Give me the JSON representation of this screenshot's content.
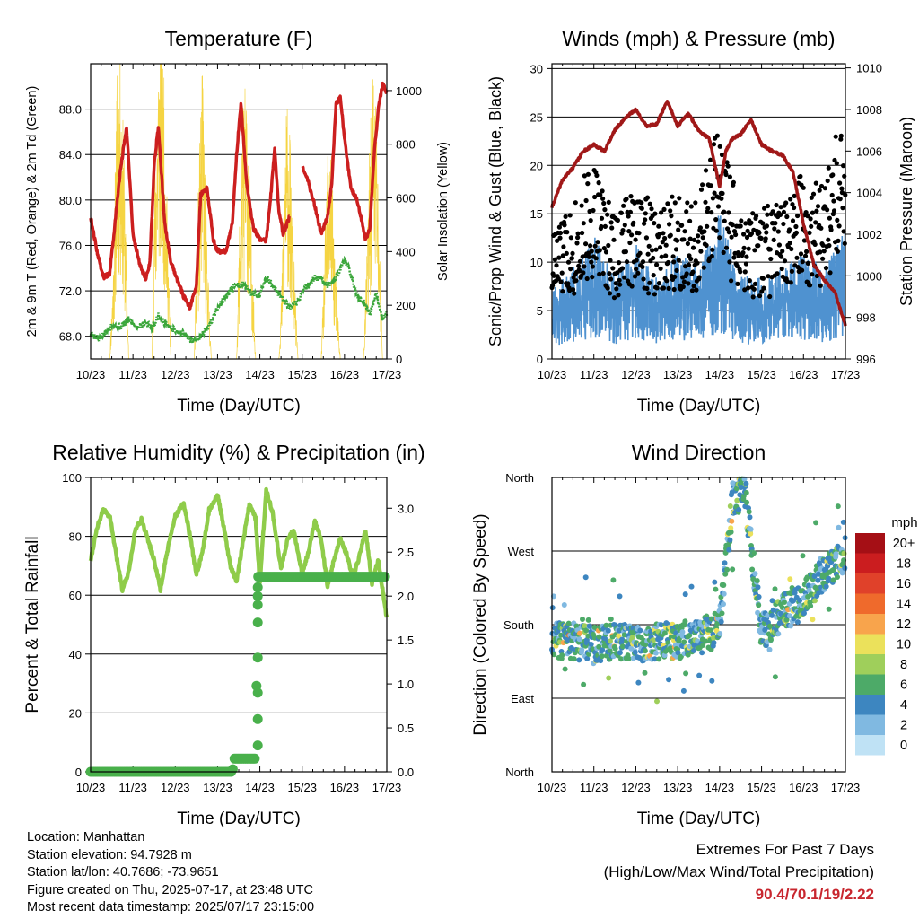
{
  "panels": {
    "temperature": {
      "title": "Temperature (F)",
      "ylabel_left": "2m & 9m T (Red, Orange) & 2m Td (Green)",
      "ylabel_right": "Solar Insolation (Yellow)",
      "xlabel": "Time (Day/UTC)"
    },
    "winds": {
      "title": "Winds (mph) & Pressure (mb)",
      "ylabel_left": "Sonic/Prop Wind & Gust (Blue, Black)",
      "ylabel_right": "Station Pressure (Maroon)",
      "xlabel": "Time (Day/UTC)"
    },
    "humidity": {
      "title": "Relative Humidity (%) & Precipitation (in)",
      "ylabel_left": "Percent & Total Rainfall",
      "xlabel": "Time (Day/UTC)"
    },
    "direction": {
      "title": "Wind Direction",
      "ylabel_left": "Direction (Colored By Speed)",
      "xlabel": "Time (Day/UTC)",
      "legend_title": "mph"
    }
  },
  "chart_data": [
    {
      "type": "line",
      "title": "Temperature (F)",
      "xlabel": "Time (Day/UTC)",
      "x_ticks": [
        "10/23",
        "11/23",
        "12/23",
        "13/23",
        "14/23",
        "15/23",
        "16/23",
        "17/23"
      ],
      "xlim": [
        0,
        7
      ],
      "ylabel": "2m & 9m T (Red, Orange) & 2m Td (Green)",
      "ylim": [
        66,
        92
      ],
      "y_ticks": [
        68.0,
        72.0,
        76.0,
        80.0,
        84.0,
        88.0
      ],
      "y2label": "Solar Insolation (Yellow)",
      "y2lim": [
        0,
        1100
      ],
      "y2_ticks": [
        0,
        200,
        400,
        600,
        800,
        1000
      ],
      "grid": true,
      "colors": {
        "temperature": "#cc1f1f",
        "dewpoint": "#3aa63a",
        "solar": "#f5d442"
      },
      "series": [
        {
          "name": "2m T",
          "axis": "left",
          "x": [
            0.0,
            0.15,
            0.3,
            0.45,
            0.55,
            0.7,
            0.85,
            1.0,
            1.15,
            1.3,
            1.4,
            1.5,
            1.6,
            1.75,
            1.9,
            2.0,
            2.2,
            2.35,
            2.5,
            2.6,
            2.75,
            2.9,
            3.0,
            3.2,
            3.35,
            3.45,
            3.55,
            3.7,
            3.85,
            4.0,
            4.15,
            4.25,
            4.35,
            4.45,
            4.55,
            4.7,
            4.85,
            5.0,
            5.15,
            5.3,
            5.45,
            5.6,
            5.7,
            5.8,
            5.9,
            6.0,
            6.15,
            6.3,
            6.5,
            6.6,
            6.7,
            6.8,
            6.9,
            7.0
          ],
          "y": [
            78.5,
            75.5,
            73.2,
            73.5,
            77.0,
            82.5,
            86.5,
            77.0,
            74.5,
            73.0,
            74.5,
            83.0,
            86.5,
            78.0,
            74.5,
            73.5,
            71.5,
            70.5,
            72.5,
            80.5,
            81.0,
            76.5,
            75.5,
            75.5,
            78.0,
            84.0,
            88.5,
            81.0,
            77.5,
            76.5,
            76.5,
            80.0,
            84.5,
            79.0,
            77.0,
            78.5,
            null,
            83.0,
            81.5,
            79.5,
            77.0,
            78.5,
            81.5,
            88.5,
            89.0,
            85.5,
            81.0,
            80.0,
            76.5,
            77.5,
            84.0,
            88.0,
            90.2,
            89.5
          ]
        },
        {
          "name": "2m Td",
          "axis": "left",
          "x": [
            0.0,
            0.2,
            0.35,
            0.5,
            0.7,
            0.9,
            1.1,
            1.3,
            1.45,
            1.6,
            1.8,
            2.0,
            2.2,
            2.4,
            2.6,
            2.8,
            3.0,
            3.2,
            3.4,
            3.6,
            3.8,
            4.0,
            4.15,
            4.3,
            4.5,
            4.7,
            4.9,
            5.0,
            5.15,
            5.3,
            5.45,
            5.6,
            5.75,
            5.9,
            6.0,
            6.15,
            6.3,
            6.45,
            6.6,
            6.75,
            6.9,
            7.0
          ],
          "y": [
            68.2,
            67.8,
            68.3,
            69.0,
            68.8,
            69.5,
            68.8,
            69.2,
            68.7,
            69.8,
            69.0,
            68.5,
            68.2,
            67.6,
            68.0,
            68.9,
            70.5,
            71.5,
            72.4,
            72.6,
            71.8,
            71.6,
            73.2,
            72.5,
            71.5,
            70.5,
            71.0,
            72.0,
            72.5,
            73.2,
            73.0,
            72.5,
            73.0,
            73.8,
            74.8,
            73.5,
            71.5,
            71.0,
            70.0,
            71.8,
            69.5,
            70.0
          ]
        },
        {
          "name": "Solar Insolation",
          "axis": "right",
          "x": [
            0.0,
            0.45,
            0.55,
            0.62,
            0.7,
            0.78,
            0.9,
            1.45,
            1.52,
            1.6,
            1.68,
            1.75,
            1.9,
            2.45,
            2.5,
            2.58,
            2.65,
            2.72,
            2.85,
            3.45,
            3.52,
            3.6,
            3.68,
            3.75,
            3.9,
            4.45,
            4.52,
            4.6,
            4.68,
            4.75,
            4.9,
            5.45,
            5.52,
            5.6,
            5.68,
            5.75,
            5.9,
            6.45,
            6.52,
            6.6,
            6.68,
            6.75,
            6.9
          ],
          "y": [
            0,
            0,
            350,
            920,
            960,
            700,
            0,
            0,
            600,
            1000,
            1100,
            800,
            0,
            0,
            300,
            700,
            950,
            500,
            0,
            0,
            450,
            800,
            900,
            600,
            0,
            0,
            250,
            750,
            850,
            500,
            0,
            0,
            300,
            650,
            700,
            400,
            0,
            0,
            300,
            700,
            950,
            800,
            0
          ]
        }
      ]
    },
    {
      "type": "scatter",
      "title": "Winds (mph) & Pressure (mb)",
      "xlabel": "Time (Day/UTC)",
      "x_ticks": [
        "10/23",
        "11/23",
        "12/23",
        "13/23",
        "14/23",
        "15/23",
        "16/23",
        "17/23"
      ],
      "xlim": [
        0,
        7
      ],
      "ylabel": "Sonic/Prop Wind & Gust (Blue, Black)",
      "ylim": [
        0,
        30.5
      ],
      "y_ticks": [
        0,
        5,
        10,
        15,
        20,
        25,
        30
      ],
      "y2label": "Station Pressure (Maroon)",
      "y2lim": [
        996,
        1010.2
      ],
      "y2_ticks": [
        996,
        998,
        1000,
        1002,
        1004,
        1006,
        1008,
        1010
      ],
      "grid": true,
      "colors": {
        "wind": "#4f92d0",
        "gust": "#000000",
        "pressure": "#a01818"
      },
      "series": [
        {
          "name": "Sonic/Prop Wind",
          "axis": "left",
          "x": [
            0.0,
            0.5,
            1.0,
            1.5,
            2.0,
            2.5,
            3.0,
            3.5,
            4.0,
            4.5,
            5.0,
            5.5,
            6.0,
            6.5,
            7.0
          ],
          "y": [
            4.5,
            5.5,
            7.5,
            5.0,
            7.0,
            5.0,
            6.5,
            5.5,
            9.0,
            5.0,
            5.0,
            5.5,
            6.5,
            5.5,
            8.0
          ]
        },
        {
          "name": "Gust",
          "axis": "left",
          "x": [
            0.0,
            0.5,
            1.0,
            1.5,
            2.0,
            2.5,
            3.0,
            3.5,
            4.0,
            4.5,
            5.0,
            5.5,
            6.0,
            6.5,
            7.0
          ],
          "y": [
            9.0,
            11.0,
            14.0,
            10.0,
            13.0,
            10.0,
            12.0,
            11.0,
            17.0,
            10.0,
            10.5,
            11.0,
            13.0,
            12.0,
            18.5
          ]
        },
        {
          "name": "Station Pressure",
          "axis": "right",
          "x": [
            0.0,
            0.25,
            0.5,
            0.75,
            1.0,
            1.25,
            1.5,
            1.75,
            2.0,
            2.25,
            2.5,
            2.75,
            3.0,
            3.25,
            3.5,
            3.75,
            4.0,
            4.15,
            4.3,
            4.5,
            4.75,
            5.0,
            5.25,
            5.5,
            5.75,
            6.0,
            6.25,
            6.5,
            6.75,
            7.0
          ],
          "y": [
            1003.3,
            1004.6,
            1005.2,
            1006.0,
            1006.3,
            1006.0,
            1007.0,
            1007.6,
            1008.0,
            1007.2,
            1007.3,
            1008.4,
            1007.2,
            1007.8,
            1007.0,
            1006.6,
            1004.3,
            1006.0,
            1006.6,
            1006.8,
            1007.5,
            1006.3,
            1006.0,
            1005.8,
            1005.0,
            1002.5,
            1000.5,
            999.8,
            999.2,
            997.6
          ]
        }
      ]
    },
    {
      "type": "line",
      "title": "Relative Humidity (%) & Precipitation (in)",
      "xlabel": "Time (Day/UTC)",
      "x_ticks": [
        "10/23",
        "11/23",
        "12/23",
        "13/23",
        "14/23",
        "15/23",
        "16/23",
        "17/23"
      ],
      "xlim": [
        0,
        7
      ],
      "ylabel": "Percent & Total Rainfall",
      "ylim": [
        0,
        100
      ],
      "y_ticks": [
        0,
        20,
        40,
        60,
        80,
        100
      ],
      "y2lim": [
        0,
        3.35
      ],
      "y2_ticks": [
        0.0,
        0.5,
        1.0,
        1.5,
        2.0,
        2.5,
        3.0
      ],
      "grid": true,
      "colors": {
        "rh": "#8fcc4a",
        "precip": "#49b04b"
      },
      "series": [
        {
          "name": "Relative Humidity",
          "axis": "left",
          "x": [
            0.0,
            0.15,
            0.3,
            0.45,
            0.6,
            0.75,
            0.9,
            1.05,
            1.2,
            1.35,
            1.5,
            1.65,
            1.8,
            2.0,
            2.2,
            2.35,
            2.5,
            2.65,
            2.8,
            3.0,
            3.15,
            3.3,
            3.45,
            3.6,
            3.75,
            3.9,
            4.0,
            4.15,
            4.3,
            4.5,
            4.65,
            4.8,
            5.0,
            5.15,
            5.3,
            5.45,
            5.6,
            5.75,
            5.9,
            6.05,
            6.2,
            6.35,
            6.5,
            6.65,
            6.8,
            7.0
          ],
          "y": [
            72,
            83,
            89,
            87,
            74,
            62,
            68,
            82,
            86,
            79,
            72,
            62,
            74,
            87,
            91,
            80,
            67,
            75,
            89,
            94,
            83,
            70,
            65,
            78,
            91,
            86,
            64,
            96,
            88,
            69,
            79,
            82,
            67,
            75,
            85,
            79,
            63,
            72,
            79,
            74,
            66,
            73,
            82,
            64,
            72,
            52
          ]
        },
        {
          "name": "Total Precipitation",
          "axis": "right",
          "x": [
            0.0,
            3.35,
            3.4,
            3.9,
            3.95,
            4.0,
            7.0
          ],
          "y": [
            0.0,
            0.0,
            0.15,
            0.15,
            2.22,
            2.22,
            2.22
          ]
        }
      ]
    },
    {
      "type": "scatter",
      "title": "Wind Direction",
      "xlabel": "Time (Day/UTC)",
      "x_ticks": [
        "10/23",
        "11/23",
        "12/23",
        "13/23",
        "14/23",
        "15/23",
        "16/23",
        "17/23"
      ],
      "xlim": [
        0,
        7
      ],
      "ylabel": "Direction (Colored By Speed)",
      "ylim": [
        0,
        360
      ],
      "y_ticks": [
        "North",
        "East",
        "South",
        "West",
        "North"
      ],
      "grid": true,
      "legend": {
        "title": "mph",
        "position": "right",
        "labels": [
          "20+",
          "18",
          "16",
          "14",
          "12",
          "10",
          "8",
          "6",
          "4",
          "2",
          "0"
        ],
        "colors": [
          "#a50f15",
          "#cb1d1f",
          "#e0412a",
          "#ef6a2c",
          "#f8a44c",
          "#ebe15b",
          "#9fcf5b",
          "#4daa68",
          "#3d86c0",
          "#80b9e1",
          "#bfe2f5"
        ]
      },
      "series": [
        {
          "name": "Wind Direction",
          "x": [
            0.0,
            0.5,
            1.0,
            1.5,
            2.0,
            2.5,
            3.0,
            3.5,
            4.0,
            4.3,
            4.6,
            5.0,
            5.5,
            6.0,
            6.5,
            7.0
          ],
          "y": [
            160,
            160,
            155,
            160,
            155,
            160,
            160,
            165,
            175,
            330,
            345,
            170,
            195,
            215,
            245,
            265
          ]
        }
      ]
    }
  ],
  "footer": {
    "location": "Location: Manhattan",
    "elevation": "Station elevation: 94.7928 m",
    "latlon": "Station lat/lon: 40.7686; -73.9651",
    "created": "Figure created on Thu, 2025-07-17, at 23:48 UTC",
    "recent": "Most recent data timestamp: 2025/07/17 23:15:00"
  },
  "extremes": {
    "title_line1": "Extremes For Past 7 Days",
    "title_line2": "(High/Low/Max Wind/Total Precipitation)",
    "values": "90.4/70.1/19/2.22"
  }
}
